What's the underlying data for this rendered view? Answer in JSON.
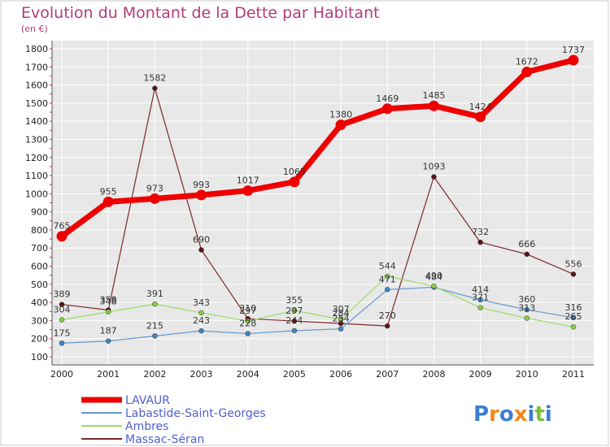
{
  "chart_data": {
    "type": "line",
    "title": "Evolution du Montant de la Dette par Habitant",
    "subtitle": "(en €)",
    "x": [
      "2000",
      "2001",
      "2002",
      "2003",
      "2004",
      "2005",
      "2006",
      "2007",
      "2008",
      "2009",
      "2010",
      "2011"
    ],
    "ylim": [
      100,
      1800
    ],
    "yticks": [
      100,
      200,
      300,
      400,
      500,
      600,
      700,
      800,
      900,
      1000,
      1100,
      1200,
      1300,
      1400,
      1500,
      1600,
      1700,
      1800
    ],
    "grid": true,
    "legend_position": "bottom-left",
    "series": [
      {
        "name": "LAVAUR",
        "color": "#ee0000",
        "marker": "#ee0000",
        "values": [
          765,
          955,
          973,
          993,
          1017,
          1065,
          1380,
          1469,
          1485,
          1424,
          1672,
          1737
        ],
        "labels": [
          "765",
          "955",
          "973",
          "993",
          "1017",
          "1065",
          "1380",
          "1469",
          "1485",
          "1424",
          "1672",
          "1737"
        ]
      },
      {
        "name": "Labastide-Saint-Georges",
        "color": "#6699cc",
        "marker": "#3d85c6",
        "values": [
          175,
          187,
          215,
          243,
          228,
          244,
          254,
          471,
          484,
          414,
          360,
          316
        ],
        "labels": [
          "175",
          "187",
          "215",
          "243",
          "228",
          "244",
          "254",
          "471",
          "484",
          "414",
          "360",
          "316"
        ]
      },
      {
        "name": "Ambres",
        "color": "#99dd66",
        "marker": "#88cc44",
        "values": [
          304,
          348,
          391,
          343,
          297,
          355,
          307,
          544,
          490,
          371,
          313,
          265
        ],
        "labels": [
          "304",
          "348",
          "391",
          "343",
          "297",
          "355",
          "307",
          "544",
          "490",
          "371",
          "313",
          "265"
        ]
      },
      {
        "name": "Massac-Séran",
        "color": "#7a2a2a",
        "marker": "#5c1515",
        "values": [
          389,
          358,
          1582,
          690,
          310,
          297,
          284,
          270,
          1093,
          732,
          666,
          556
        ],
        "labels": [
          "389",
          "358",
          "1582",
          "690",
          "310",
          "297",
          "284",
          "270",
          "1093",
          "732",
          "666",
          "556"
        ]
      }
    ]
  },
  "logo": {
    "text": "Proxiti",
    "colors": [
      "#3b7fd4",
      "#f08a1c",
      "#3b7fd4",
      "#f08a1c",
      "#3b7fd4",
      "#7bbf3a",
      "#3b7fd4"
    ]
  },
  "colors": {
    "plot_bg": "#e8e8e8",
    "title": "#b43c7a",
    "legend_text": "#5060d0"
  }
}
